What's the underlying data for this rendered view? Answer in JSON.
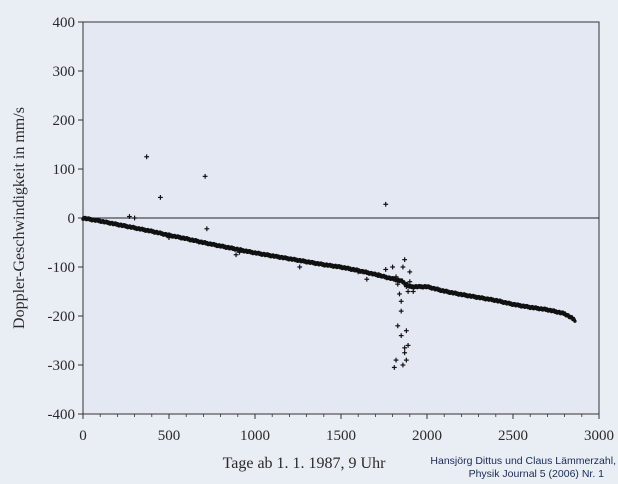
{
  "colors": {
    "page_background": "#e9edf4",
    "plot_background": "#e3e8f2",
    "axis": "#333333",
    "zero_line": "#222222",
    "points": "#111111",
    "credit_text": "#1a2a55"
  },
  "credit": {
    "line1": "Hansjörg Dittus und Claus Lämmerzahl,",
    "line2": "Physik Journal 5 (2006) Nr. 1"
  },
  "chart_data": {
    "type": "scatter",
    "title": "",
    "xlabel": "Tage ab 1. 1. 1987, 9 Uhr",
    "ylabel": "Doppler-Geschwindigkeit in mm/s",
    "xlim": [
      0,
      3000
    ],
    "ylim": [
      -400,
      400
    ],
    "xticks": [
      0,
      500,
      1000,
      1500,
      2000,
      2500,
      3000
    ],
    "yticks": [
      400,
      300,
      200,
      100,
      0,
      -100,
      -200,
      -300,
      -400
    ],
    "grid": false,
    "legend": "none",
    "reference_line_y": 0,
    "trend": {
      "x": [
        0,
        100,
        200,
        300,
        400,
        500,
        600,
        700,
        800,
        900,
        1000,
        1100,
        1200,
        1300,
        1400,
        1500,
        1600,
        1700,
        1800,
        1850,
        1900,
        2000,
        2100,
        2200,
        2300,
        2400,
        2500,
        2600,
        2700,
        2800,
        2860
      ],
      "y": [
        0,
        -6,
        -13,
        -20,
        -27,
        -35,
        -42,
        -50,
        -57,
        -64,
        -71,
        -77,
        -83,
        -89,
        -95,
        -100,
        -107,
        -115,
        -124,
        -128,
        -140,
        -140,
        -149,
        -156,
        -162,
        -168,
        -176,
        -182,
        -187,
        -195,
        -208
      ]
    },
    "outliers": {
      "x": [
        370,
        450,
        710,
        720,
        270,
        300,
        500,
        890,
        910,
        1260,
        1600,
        1650,
        1720,
        1760,
        1760,
        1800,
        1820,
        1830,
        1840,
        1850,
        1860,
        1870,
        1880,
        1890,
        1900,
        1850,
        1880,
        1890,
        1830,
        1850,
        1870,
        1880,
        1820,
        1810,
        1860,
        1870,
        1900,
        1920
      ],
      "y": [
        125,
        42,
        85,
        -22,
        3,
        0,
        -40,
        -75,
        -70,
        -100,
        -110,
        -125,
        -115,
        -105,
        28,
        -100,
        -120,
        -135,
        -155,
        -170,
        -100,
        -85,
        -140,
        -150,
        -110,
        -190,
        -230,
        -260,
        -220,
        -240,
        -275,
        -290,
        -290,
        -305,
        -300,
        -265,
        -130,
        -150
      ]
    }
  }
}
